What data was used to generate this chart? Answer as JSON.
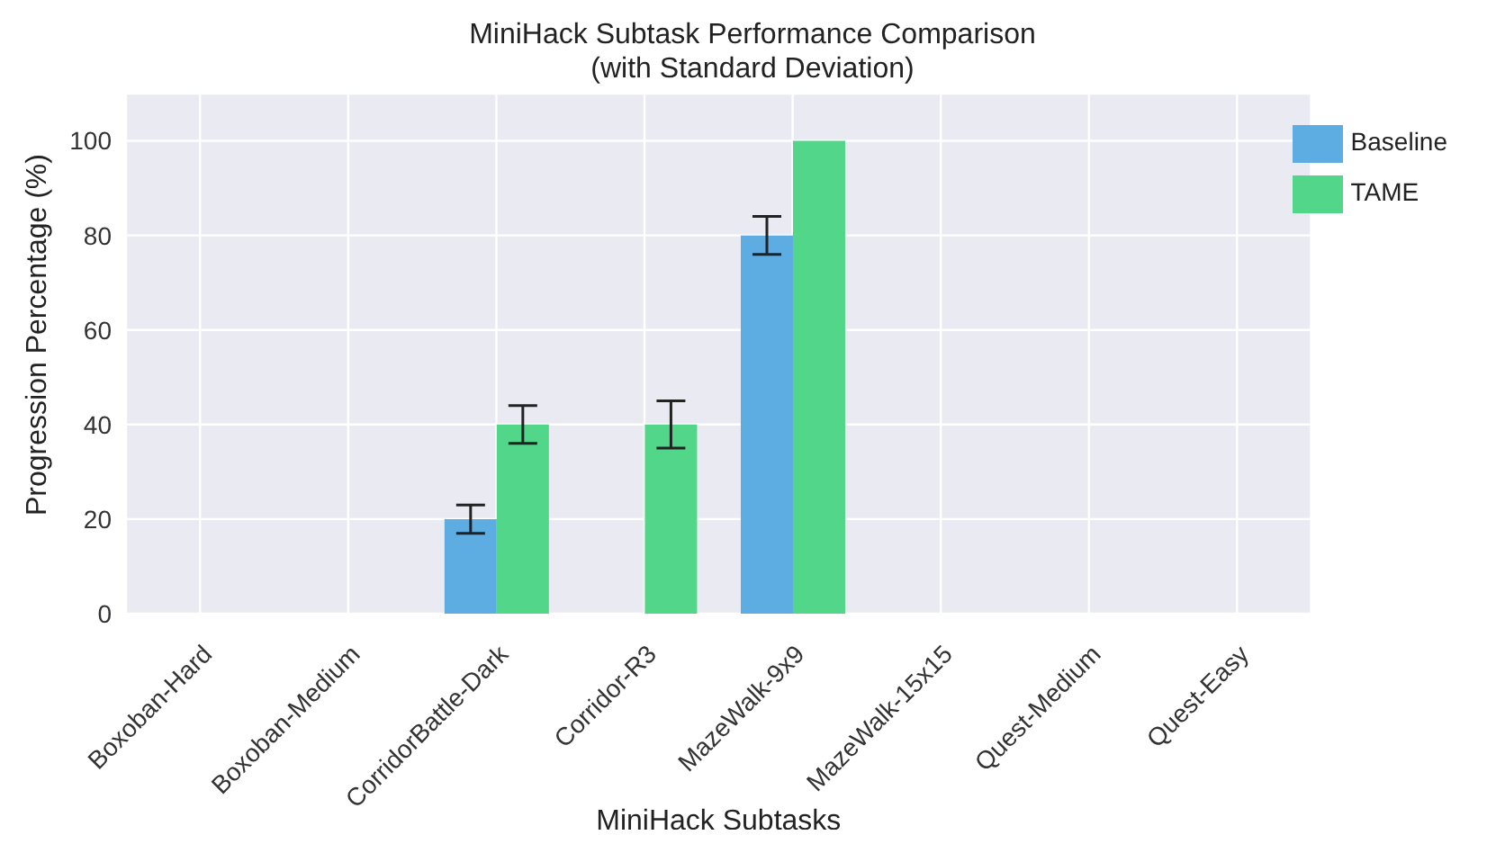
{
  "chart_data": {
    "type": "bar",
    "title": "MiniHack Subtask Performance Comparison\n(with Standard Deviation)",
    "xlabel": "MiniHack Subtasks",
    "ylabel": "Progression Percentage (%)",
    "categories": [
      "Boxoban-Hard",
      "Boxoban-Medium",
      "CorridorBattle-Dark",
      "Corridor-R3",
      "MazeWalk-9x9",
      "MazeWalk-15x15",
      "Quest-Medium",
      "Quest-Easy"
    ],
    "series": [
      {
        "name": "Baseline",
        "color": "#5dade2",
        "values": [
          0,
          0,
          20,
          0,
          80,
          0,
          0,
          0
        ],
        "errors": [
          0,
          0,
          3,
          0,
          4,
          0,
          0,
          0
        ]
      },
      {
        "name": "TAME",
        "color": "#52d68a",
        "values": [
          0,
          0,
          40,
          40,
          100,
          0,
          0,
          0
        ],
        "errors": [
          0,
          0,
          4,
          5,
          0,
          0,
          0,
          0
        ]
      }
    ],
    "ylim": [
      0,
      110
    ],
    "yticks": [
      0,
      20,
      40,
      60,
      80,
      100
    ],
    "grid": true,
    "legend": "top right"
  }
}
